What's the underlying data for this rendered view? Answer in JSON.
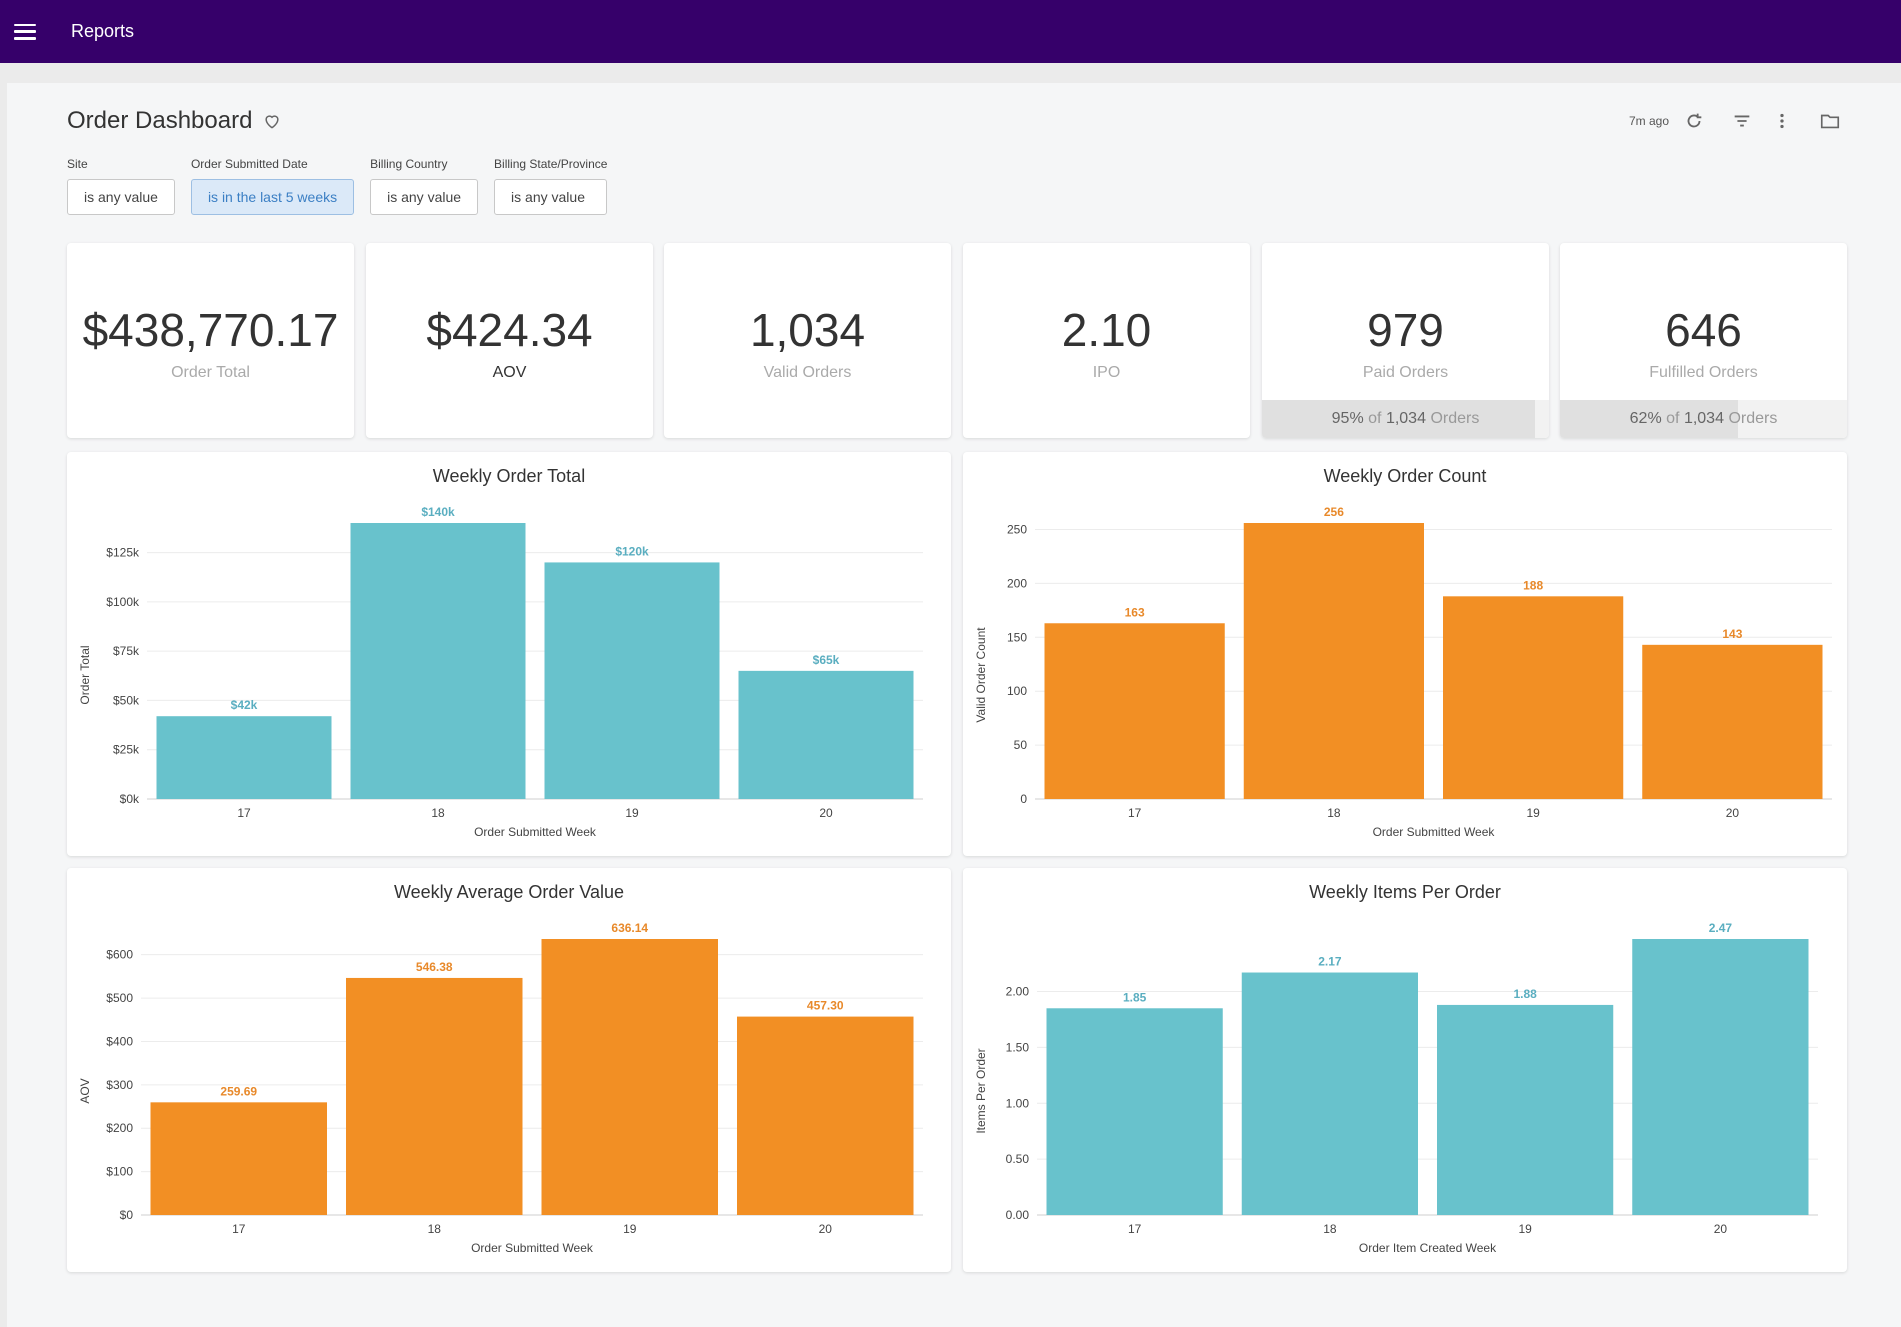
{
  "topbar": {
    "title": "Reports"
  },
  "dashboard": {
    "title": "Order Dashboard",
    "updated": "7m ago",
    "icons": [
      "refresh-icon",
      "filter-icon",
      "more-vertical-icon",
      "folder-icon"
    ]
  },
  "filters": [
    {
      "label": "Site",
      "value": "is any value",
      "active": false
    },
    {
      "label": "Order Submitted Date",
      "value": "is in the last 5 weeks",
      "active": true
    },
    {
      "label": "Billing Country",
      "value": "is any value",
      "active": false
    },
    {
      "label": "Billing State/Province",
      "value": "is any value",
      "active": false
    }
  ],
  "kpis": [
    {
      "value": "$438,770.17",
      "label": "Order Total"
    },
    {
      "value": "$424.34",
      "label": "AOV"
    },
    {
      "value": "1,034",
      "label": "Valid Orders"
    },
    {
      "value": "2.10",
      "label": "IPO"
    },
    {
      "value": "979",
      "label": "Paid Orders",
      "foot_pct": "95%",
      "foot_of": "of",
      "foot_total": "1,034",
      "foot_unit": "Orders",
      "foot_fraction": 0.95
    },
    {
      "value": "646",
      "label": "Fulfilled Orders",
      "foot_pct": "62%",
      "foot_of": "of",
      "foot_total": "1,034",
      "foot_unit": "Orders",
      "foot_fraction": 0.62
    }
  ],
  "colors": {
    "teal": "#68c2cc",
    "orange": "#f28f24",
    "header": "#36006a",
    "teal_label": "#5aaec0",
    "orange_label": "#e8892a"
  },
  "chart_data": [
    {
      "type": "bar",
      "title": "Weekly Order Total",
      "categories": [
        "17",
        "18",
        "19",
        "20"
      ],
      "values": [
        42000,
        140000,
        120000,
        65000
      ],
      "data_labels": [
        "$42k",
        "$140k",
        "$120k",
        "$65k"
      ],
      "xlabel": "Order Submitted Week",
      "ylabel": "Order Total",
      "ylim": [
        0,
        140000
      ],
      "yticks": [
        0,
        25000,
        50000,
        75000,
        100000,
        125000
      ],
      "ytick_labels": [
        "$0k",
        "$25k",
        "$50k",
        "$75k",
        "$100k",
        "$125k"
      ],
      "color": "#68c2cc",
      "label_color": "#5aaec0"
    },
    {
      "type": "bar",
      "title": "Weekly Order Count",
      "categories": [
        "17",
        "18",
        "19",
        "20"
      ],
      "values": [
        163,
        256,
        188,
        143
      ],
      "data_labels": [
        "163",
        "256",
        "188",
        "143"
      ],
      "xlabel": "Order Submitted Week",
      "ylabel": "Valid Order Count",
      "ylim": [
        0,
        256
      ],
      "yticks": [
        0,
        50,
        100,
        150,
        200,
        250
      ],
      "ytick_labels": [
        "0",
        "50",
        "100",
        "150",
        "200",
        "250"
      ],
      "color": "#f28f24",
      "label_color": "#e8892a"
    },
    {
      "type": "bar",
      "title": "Weekly Average Order Value",
      "categories": [
        "17",
        "18",
        "19",
        "20"
      ],
      "values": [
        259.69,
        546.38,
        636.14,
        457.3
      ],
      "data_labels": [
        "259.69",
        "546.38",
        "636.14",
        "457.30"
      ],
      "xlabel": "Order Submitted Week",
      "ylabel": "AOV",
      "ylim": [
        0,
        636.14
      ],
      "yticks": [
        0,
        100,
        200,
        300,
        400,
        500,
        600
      ],
      "ytick_labels": [
        "$0",
        "$100",
        "$200",
        "$300",
        "$400",
        "$500",
        "$600"
      ],
      "color": "#f28f24",
      "label_color": "#e8892a"
    },
    {
      "type": "bar",
      "title": "Weekly Items Per Order",
      "categories": [
        "17",
        "18",
        "19",
        "20"
      ],
      "values": [
        1.85,
        2.17,
        1.88,
        2.47
      ],
      "data_labels": [
        "1.85",
        "2.17",
        "1.88",
        "2.47"
      ],
      "xlabel": "Order Item Created Week",
      "ylabel": "Items Per Order",
      "ylim": [
        0,
        2.47
      ],
      "yticks": [
        0,
        0.5,
        1.0,
        1.5,
        2.0
      ],
      "ytick_labels": [
        "0.00",
        "0.50",
        "1.00",
        "1.50",
        "2.00"
      ],
      "color": "#68c2cc",
      "label_color": "#5aaec0"
    }
  ]
}
